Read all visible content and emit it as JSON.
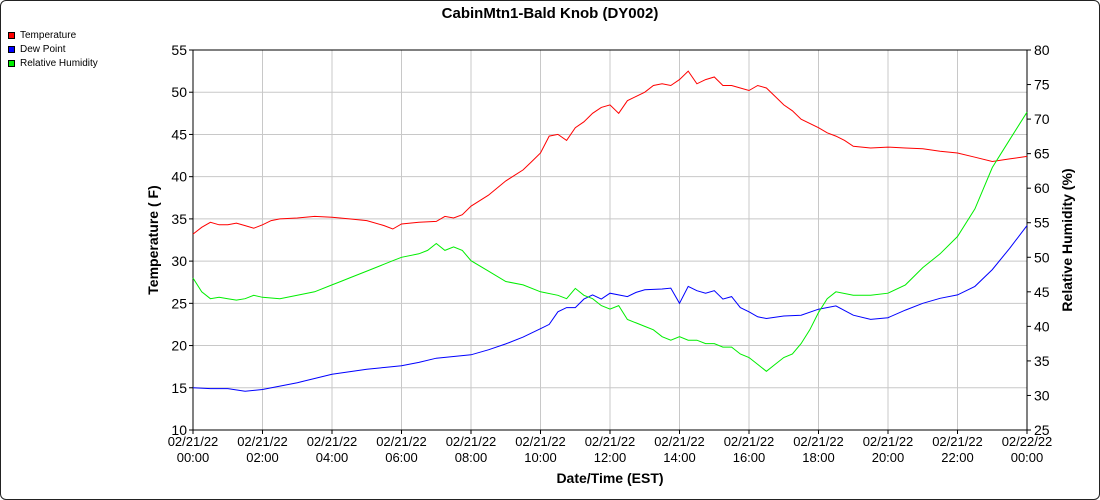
{
  "chart_data": {
    "type": "line",
    "title": "CabinMtn1-Bald Knob (DY002)",
    "xlabel": "Date/Time (EST)",
    "ylabel": "Temperature ( F)",
    "y2label": "Relative Humidity (%)",
    "xlim": [
      0,
      24
    ],
    "ylim": [
      10,
      55
    ],
    "y2lim": [
      25,
      80
    ],
    "yticks": [
      10,
      15,
      20,
      25,
      30,
      35,
      40,
      45,
      50,
      55
    ],
    "y2ticks": [
      25,
      30,
      35,
      40,
      45,
      50,
      55,
      60,
      65,
      70,
      75,
      80
    ],
    "xticks": [
      {
        "x": 0,
        "date": "02/21/22",
        "time": "00:00"
      },
      {
        "x": 2,
        "date": "02/21/22",
        "time": "02:00"
      },
      {
        "x": 4,
        "date": "02/21/22",
        "time": "04:00"
      },
      {
        "x": 6,
        "date": "02/21/22",
        "time": "06:00"
      },
      {
        "x": 8,
        "date": "02/21/22",
        "time": "08:00"
      },
      {
        "x": 10,
        "date": "02/21/22",
        "time": "10:00"
      },
      {
        "x": 12,
        "date": "02/21/22",
        "time": "12:00"
      },
      {
        "x": 14,
        "date": "02/21/22",
        "time": "14:00"
      },
      {
        "x": 16,
        "date": "02/21/22",
        "time": "16:00"
      },
      {
        "x": 18,
        "date": "02/21/22",
        "time": "18:00"
      },
      {
        "x": 20,
        "date": "02/21/22",
        "time": "20:00"
      },
      {
        "x": 22,
        "date": "02/21/22",
        "time": "22:00"
      },
      {
        "x": 24,
        "date": "02/22/22",
        "time": "00:00"
      }
    ],
    "grid": true,
    "legend_position": "top-left",
    "series": [
      {
        "name": "Temperature",
        "color": "#ff0000",
        "axis": "left",
        "points": [
          [
            0,
            33.2
          ],
          [
            0.25,
            34
          ],
          [
            0.5,
            34.6
          ],
          [
            0.75,
            34.3
          ],
          [
            1,
            34.3
          ],
          [
            1.25,
            34.5
          ],
          [
            1.5,
            34.2
          ],
          [
            1.75,
            33.9
          ],
          [
            2,
            34.3
          ],
          [
            2.25,
            34.8
          ],
          [
            2.5,
            35
          ],
          [
            3,
            35.1
          ],
          [
            3.5,
            35.3
          ],
          [
            4,
            35.2
          ],
          [
            4.5,
            35
          ],
          [
            5,
            34.8
          ],
          [
            5.5,
            34.2
          ],
          [
            5.75,
            33.8
          ],
          [
            6,
            34.4
          ],
          [
            6.5,
            34.6
          ],
          [
            7,
            34.7
          ],
          [
            7.25,
            35.3
          ],
          [
            7.5,
            35.1
          ],
          [
            7.75,
            35.5
          ],
          [
            8,
            36.5
          ],
          [
            8.5,
            37.8
          ],
          [
            9,
            39.5
          ],
          [
            9.5,
            40.8
          ],
          [
            9.75,
            41.8
          ],
          [
            10,
            42.8
          ],
          [
            10.25,
            44.8
          ],
          [
            10.5,
            45
          ],
          [
            10.75,
            44.3
          ],
          [
            11,
            45.8
          ],
          [
            11.25,
            46.5
          ],
          [
            11.5,
            47.5
          ],
          [
            11.75,
            48.2
          ],
          [
            12,
            48.5
          ],
          [
            12.25,
            47.5
          ],
          [
            12.5,
            49
          ],
          [
            12.75,
            49.5
          ],
          [
            13,
            50
          ],
          [
            13.25,
            50.8
          ],
          [
            13.5,
            51
          ],
          [
            13.75,
            50.8
          ],
          [
            14,
            51.5
          ],
          [
            14.25,
            52.5
          ],
          [
            14.5,
            51
          ],
          [
            14.75,
            51.5
          ],
          [
            15,
            51.8
          ],
          [
            15.25,
            50.8
          ],
          [
            15.5,
            50.8
          ],
          [
            15.75,
            50.5
          ],
          [
            16,
            50.2
          ],
          [
            16.25,
            50.8
          ],
          [
            16.5,
            50.5
          ],
          [
            16.75,
            49.5
          ],
          [
            17,
            48.5
          ],
          [
            17.25,
            47.8
          ],
          [
            17.5,
            46.8
          ],
          [
            18,
            45.8
          ],
          [
            18.25,
            45.2
          ],
          [
            18.5,
            44.8
          ],
          [
            18.75,
            44.3
          ],
          [
            19,
            43.6
          ],
          [
            19.5,
            43.4
          ],
          [
            20,
            43.5
          ],
          [
            20.5,
            43.4
          ],
          [
            21,
            43.3
          ],
          [
            21.5,
            43
          ],
          [
            22,
            42.8
          ],
          [
            22.5,
            42.3
          ],
          [
            23,
            41.8
          ],
          [
            23.5,
            42.1
          ],
          [
            24,
            42.4
          ]
        ]
      },
      {
        "name": "Dew Point",
        "color": "#0000ff",
        "axis": "left",
        "points": [
          [
            0,
            15
          ],
          [
            0.5,
            14.9
          ],
          [
            1,
            14.9
          ],
          [
            1.5,
            14.6
          ],
          [
            2,
            14.8
          ],
          [
            2.5,
            15.2
          ],
          [
            3,
            15.6
          ],
          [
            3.5,
            16.1
          ],
          [
            4,
            16.6
          ],
          [
            4.5,
            16.9
          ],
          [
            5,
            17.2
          ],
          [
            5.5,
            17.4
          ],
          [
            6,
            17.6
          ],
          [
            6.5,
            18
          ],
          [
            7,
            18.5
          ],
          [
            7.5,
            18.7
          ],
          [
            8,
            18.9
          ],
          [
            8.5,
            19.5
          ],
          [
            9,
            20.2
          ],
          [
            9.5,
            21
          ],
          [
            10,
            22
          ],
          [
            10.25,
            22.5
          ],
          [
            10.5,
            24
          ],
          [
            10.75,
            24.5
          ],
          [
            11,
            24.5
          ],
          [
            11.25,
            25.5
          ],
          [
            11.5,
            26
          ],
          [
            11.75,
            25.5
          ],
          [
            12,
            26.2
          ],
          [
            12.5,
            25.8
          ],
          [
            12.75,
            26.3
          ],
          [
            13,
            26.6
          ],
          [
            13.5,
            26.7
          ],
          [
            13.75,
            26.8
          ],
          [
            14,
            25
          ],
          [
            14.25,
            27
          ],
          [
            14.5,
            26.5
          ],
          [
            14.75,
            26.2
          ],
          [
            15,
            26.5
          ],
          [
            15.25,
            25.5
          ],
          [
            15.5,
            25.8
          ],
          [
            15.75,
            24.5
          ],
          [
            16,
            24
          ],
          [
            16.25,
            23.4
          ],
          [
            16.5,
            23.2
          ],
          [
            17,
            23.5
          ],
          [
            17.5,
            23.6
          ],
          [
            18,
            24.3
          ],
          [
            18.5,
            24.7
          ],
          [
            19,
            23.6
          ],
          [
            19.5,
            23.1
          ],
          [
            20,
            23.3
          ],
          [
            20.5,
            24.2
          ],
          [
            21,
            25
          ],
          [
            21.5,
            25.6
          ],
          [
            22,
            26
          ],
          [
            22.5,
            27
          ],
          [
            23,
            29
          ],
          [
            23.5,
            31.5
          ],
          [
            24,
            34.2
          ]
        ]
      },
      {
        "name": "Relative Humidity",
        "color": "#00ee00",
        "axis": "right",
        "points": [
          [
            0,
            47
          ],
          [
            0.25,
            45
          ],
          [
            0.5,
            44
          ],
          [
            0.75,
            44.2
          ],
          [
            1,
            44
          ],
          [
            1.25,
            43.8
          ],
          [
            1.5,
            44
          ],
          [
            1.75,
            44.5
          ],
          [
            2,
            44.2
          ],
          [
            2.5,
            44
          ],
          [
            3,
            44.5
          ],
          [
            3.5,
            45
          ],
          [
            4,
            46
          ],
          [
            4.25,
            46.5
          ],
          [
            4.5,
            47
          ],
          [
            5,
            48
          ],
          [
            5.5,
            49
          ],
          [
            5.75,
            49.5
          ],
          [
            6,
            50
          ],
          [
            6.5,
            50.5
          ],
          [
            6.75,
            51
          ],
          [
            7,
            52
          ],
          [
            7.25,
            51
          ],
          [
            7.5,
            51.5
          ],
          [
            7.75,
            51
          ],
          [
            8,
            49.5
          ],
          [
            8.5,
            48
          ],
          [
            9,
            46.5
          ],
          [
            9.5,
            46
          ],
          [
            10,
            45
          ],
          [
            10.5,
            44.5
          ],
          [
            10.75,
            44
          ],
          [
            11,
            45.5
          ],
          [
            11.25,
            44.5
          ],
          [
            11.5,
            44
          ],
          [
            11.75,
            43
          ],
          [
            12,
            42.5
          ],
          [
            12.25,
            43
          ],
          [
            12.5,
            41
          ],
          [
            12.75,
            40.5
          ],
          [
            13,
            40
          ],
          [
            13.25,
            39.5
          ],
          [
            13.5,
            38.5
          ],
          [
            13.75,
            38
          ],
          [
            14,
            38.5
          ],
          [
            14.25,
            38
          ],
          [
            14.5,
            38
          ],
          [
            14.75,
            37.5
          ],
          [
            15,
            37.5
          ],
          [
            15.25,
            37
          ],
          [
            15.5,
            37
          ],
          [
            15.75,
            36
          ],
          [
            16,
            35.5
          ],
          [
            16.25,
            34.5
          ],
          [
            16.5,
            33.5
          ],
          [
            16.75,
            34.5
          ],
          [
            17,
            35.5
          ],
          [
            17.25,
            36
          ],
          [
            17.5,
            37.5
          ],
          [
            17.75,
            39.5
          ],
          [
            18,
            42
          ],
          [
            18.25,
            44
          ],
          [
            18.5,
            45
          ],
          [
            19,
            44.5
          ],
          [
            19.5,
            44.5
          ],
          [
            20,
            44.8
          ],
          [
            20.5,
            46
          ],
          [
            21,
            48.5
          ],
          [
            21.5,
            50.5
          ],
          [
            22,
            53
          ],
          [
            22.5,
            57
          ],
          [
            23,
            63
          ],
          [
            23.5,
            67
          ],
          [
            24,
            71
          ]
        ]
      }
    ]
  }
}
